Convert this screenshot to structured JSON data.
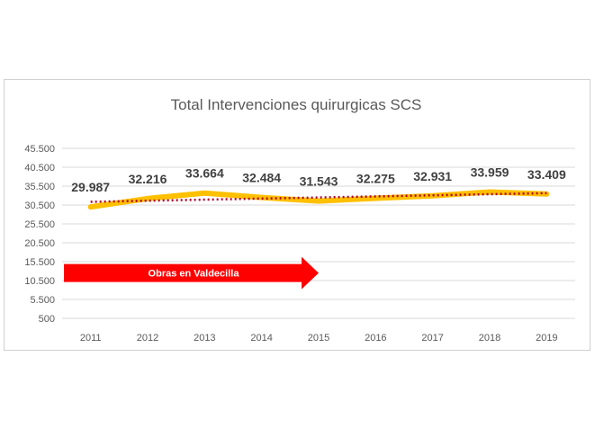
{
  "chart_data": {
    "type": "line",
    "title": "Total Intervenciones quirurgicas SCS",
    "xlabel": "",
    "ylabel": "",
    "categories": [
      "2011",
      "2012",
      "2013",
      "2014",
      "2015",
      "2016",
      "2017",
      "2018",
      "2019"
    ],
    "values": [
      29987,
      32216,
      33664,
      32484,
      31543,
      32275,
      32931,
      33959,
      33409
    ],
    "data_labels": [
      "29.987",
      "32.216",
      "33.664",
      "32.484",
      "31.543",
      "32.275",
      "32.931",
      "33.959",
      "33.409"
    ],
    "yticks": [
      500,
      5500,
      10500,
      15500,
      20500,
      25500,
      30500,
      35500,
      40500,
      45500
    ],
    "ytick_labels": [
      "500",
      "5.500",
      "10.500",
      "15.500",
      "20.500",
      "25.500",
      "30.500",
      "35.500",
      "40.500",
      "45.500"
    ],
    "ylim": [
      500,
      45500
    ],
    "grid": true,
    "legend": "none",
    "trendline": {
      "style": "dotted",
      "color": "#b2002a"
    },
    "series_color": "#ffc000",
    "annotation": {
      "text": "Obras en Valdecilla",
      "shape": "arrow",
      "color": "#ff0000",
      "from_category": "2011",
      "to_category": "2015",
      "y_value": 12500
    }
  }
}
